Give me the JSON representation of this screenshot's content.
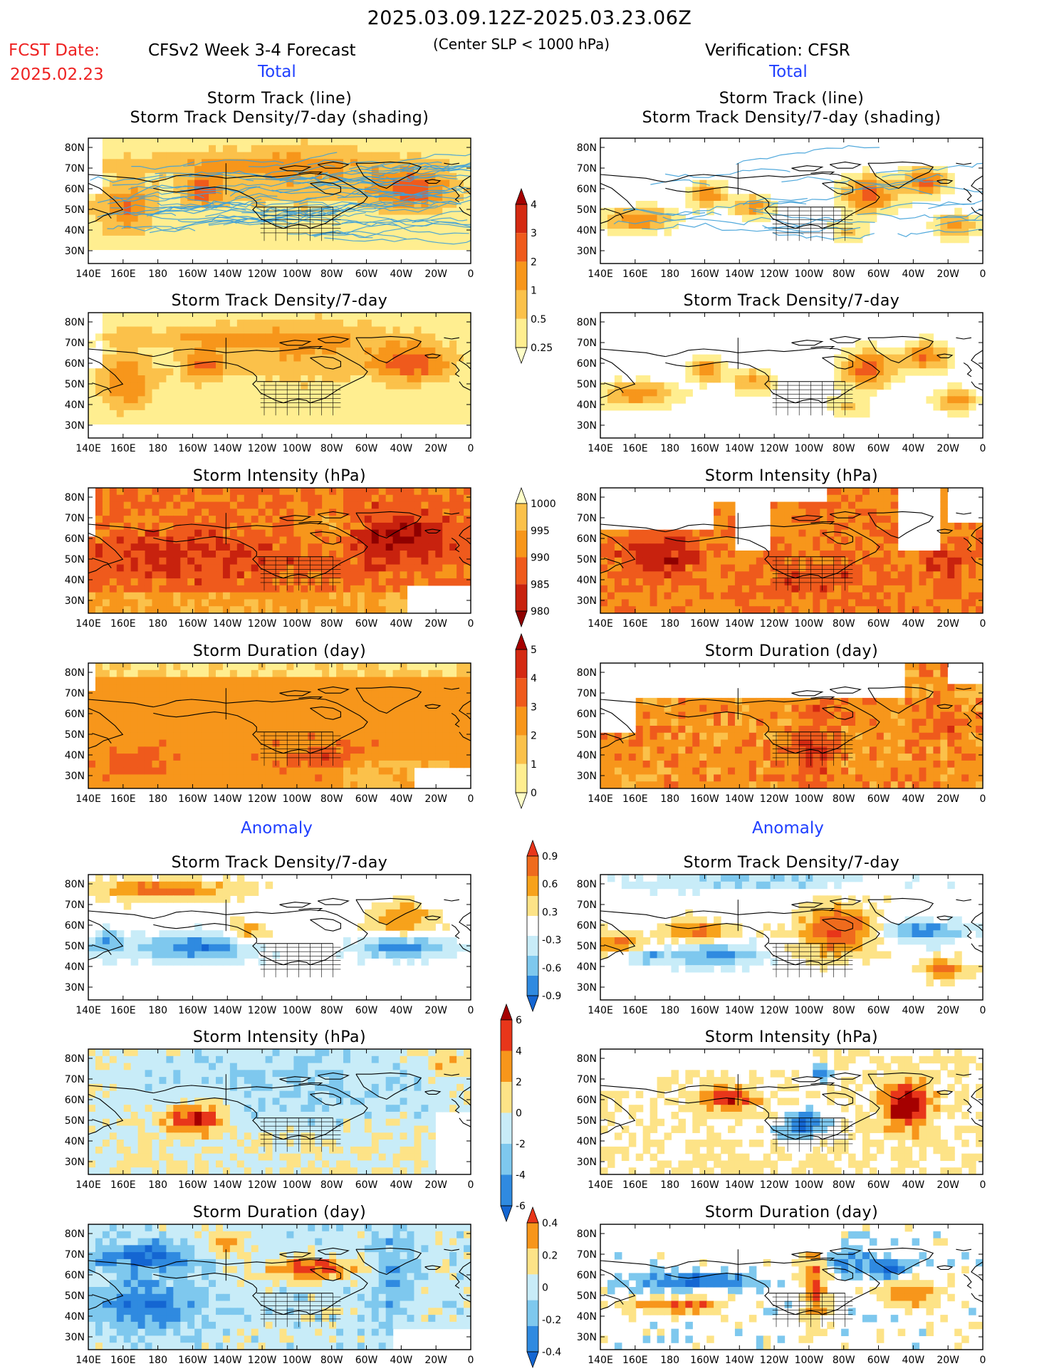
{
  "header": {
    "date_range": "2025.03.09.12Z-2025.03.23.06Z",
    "fcst_label": "FCST Date:",
    "fcst_date": "2025.02.23",
    "model_title": "CFSv2 Week 3-4 Forecast",
    "condition": "(Center SLP < 1000 hPa)",
    "verification": "Verification: CFSR"
  },
  "sections": {
    "total_label": "Total",
    "anomaly_label": "Anomaly"
  },
  "axes": {
    "lon_ticks": [
      "140E",
      "160E",
      "180",
      "160W",
      "140W",
      "120W",
      "100W",
      "80W",
      "60W",
      "40W",
      "20W",
      "0"
    ],
    "lat_ticks": [
      "80N",
      "70N",
      "60N",
      "50N",
      "40N",
      "30N"
    ]
  },
  "panels": [
    {
      "id": "fcst-track",
      "title1": "Storm Track (line)",
      "title2": "Storm Track Density/7-day (shading)"
    },
    {
      "id": "obs-track",
      "title1": "Storm Track (line)",
      "title2": "Storm Track Density/7-day (shading)"
    },
    {
      "id": "fcst-density",
      "title1": "Storm Track Density/7-day"
    },
    {
      "id": "obs-density",
      "title1": "Storm Track Density/7-day"
    },
    {
      "id": "fcst-intensity",
      "title1": "Storm Intensity (hPa)"
    },
    {
      "id": "obs-intensity",
      "title1": "Storm Intensity (hPa)"
    },
    {
      "id": "fcst-duration",
      "title1": "Storm Duration (day)"
    },
    {
      "id": "obs-duration",
      "title1": "Storm Duration (day)"
    },
    {
      "id": "fcst-density-anom",
      "title1": "Storm Track Density/7-day"
    },
    {
      "id": "obs-density-anom",
      "title1": "Storm Track Density/7-day"
    },
    {
      "id": "fcst-intensity-anom",
      "title1": "Storm Intensity (hPa)"
    },
    {
      "id": "obs-intensity-anom",
      "title1": "Storm Intensity (hPa)"
    },
    {
      "id": "fcst-duration-anom",
      "title1": "Storm Duration (day)"
    },
    {
      "id": "obs-duration-anom",
      "title1": "Storm Duration (day)"
    }
  ],
  "colorbars": [
    {
      "id": "density",
      "labels": [
        "4",
        "3",
        "2",
        "1",
        "0.5",
        "0.25"
      ],
      "colors": [
        "#a50000",
        "#d42a12",
        "#ef5a1c",
        "#f7961b",
        "#fbc14a",
        "#ffee90",
        "#ffffc8"
      ]
    },
    {
      "id": "intensity",
      "labels": [
        "1000",
        "995",
        "990",
        "985",
        "980"
      ],
      "colors": [
        "#ffffc8",
        "#fbc14a",
        "#f7961b",
        "#ef5a1c",
        "#c8220e",
        "#8f0000"
      ]
    },
    {
      "id": "duration",
      "labels": [
        "5",
        "4",
        "3",
        "2",
        "1",
        "0"
      ],
      "colors": [
        "#a50000",
        "#d42a12",
        "#ef5a1c",
        "#f7961b",
        "#fbc14a",
        "#ffee90",
        "#ffffc8"
      ]
    },
    {
      "id": "density-anom",
      "labels": [
        "0.9",
        "0.6",
        "0.3",
        "-0.3",
        "-0.6",
        "-0.9"
      ],
      "colors": [
        "#e8361a",
        "#ef6b1d",
        "#f7a21b",
        "#fde387",
        "#ffffff",
        "#c8ecf8",
        "#7ec8ee",
        "#2f8ae0",
        "#1466d2"
      ]
    },
    {
      "id": "intensity-anom",
      "labels": [
        "6",
        "4",
        "2",
        "0",
        "-2",
        "-4",
        "-6"
      ],
      "colors": [
        "#a50000",
        "#e8361a",
        "#f7961b",
        "#fde387",
        "#c8ecf8",
        "#7ec8ee",
        "#2f8ae0",
        "#1466d2"
      ]
    },
    {
      "id": "duration-anom",
      "labels": [
        "0.4",
        "0.2",
        "0",
        "-0.2",
        "-0.4"
      ],
      "colors": [
        "#e8361a",
        "#f7961b",
        "#fde387",
        "#c8ecf8",
        "#7ec8ee",
        "#2f8ae0",
        "#1466d2"
      ]
    }
  ],
  "colors": {
    "red_text": "#ee2222",
    "blue_text": "#1f3fff",
    "track_line": "#3ea0d8",
    "map_line": "#000000"
  }
}
